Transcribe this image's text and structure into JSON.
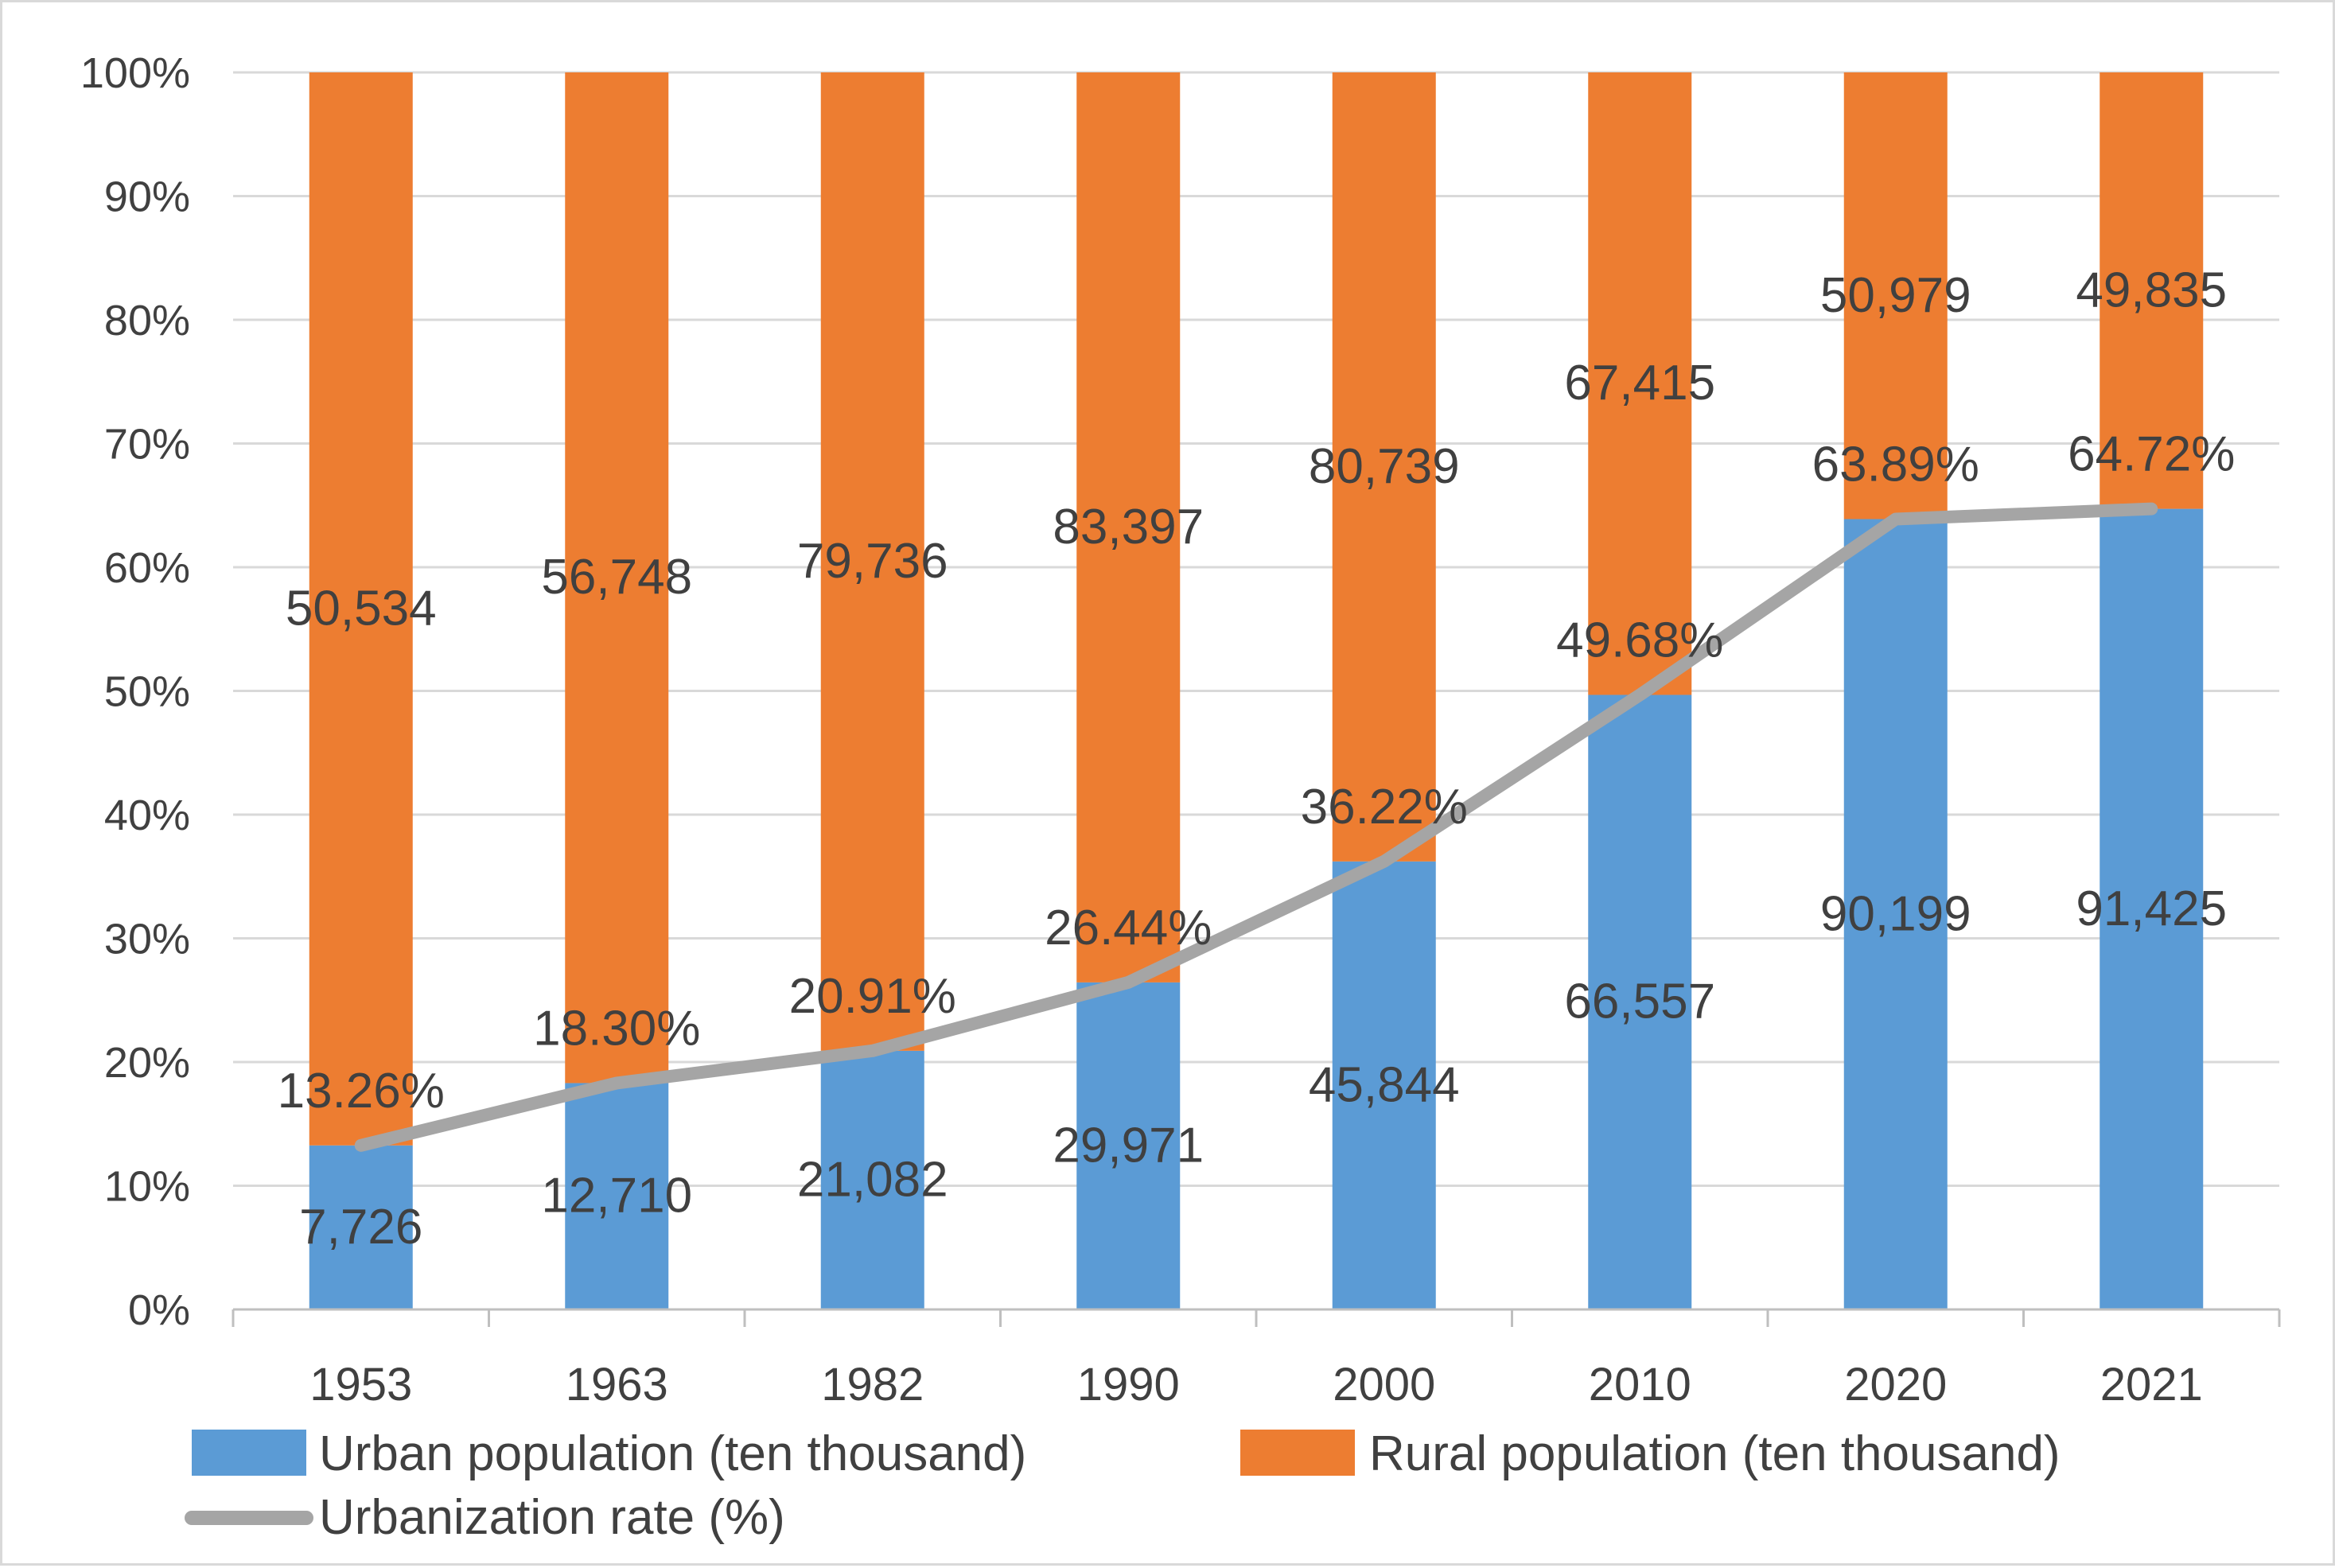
{
  "chart_data": {
    "type": "bar",
    "stacking": "percent",
    "title": "",
    "xlabel": "",
    "ylabel": "",
    "ylim": [
      0,
      100
    ],
    "y_ticks": [
      "0%",
      "10%",
      "20%",
      "30%",
      "40%",
      "50%",
      "60%",
      "70%",
      "80%",
      "90%",
      "100%"
    ],
    "categories": [
      "1953",
      "1963",
      "1982",
      "1990",
      "2000",
      "2010",
      "2020",
      "2021"
    ],
    "series": [
      {
        "name": "Urban population (ten thousand)",
        "kind": "bar",
        "color": "#5b9bd5",
        "values": [
          7726,
          12710,
          21082,
          29971,
          45844,
          66557,
          90199,
          91425
        ],
        "labels": [
          "7,726",
          "12,710",
          "21,082",
          "29,971",
          "45,844",
          "66,557",
          "90,199",
          "91,425"
        ]
      },
      {
        "name": "Rural population (ten thousand)",
        "kind": "bar",
        "color": "#ed7d31",
        "values": [
          50534,
          56748,
          79736,
          83397,
          80739,
          67415,
          50979,
          49835
        ],
        "labels": [
          "50,534",
          "56,748",
          "79,736",
          "83,397",
          "80,739",
          "67,415",
          "50,979",
          "49,835"
        ]
      },
      {
        "name": "Urbanization rate (%)",
        "kind": "line",
        "color": "#a5a5a5",
        "values": [
          13.26,
          18.3,
          20.91,
          26.44,
          36.22,
          49.68,
          63.89,
          64.72
        ],
        "labels": [
          "13.26%",
          "18.30%",
          "20.91%",
          "26.44%",
          "36.22%",
          "49.68%",
          "63.89%",
          "64.72%"
        ]
      }
    ],
    "legend_position": "bottom",
    "grid": true
  }
}
